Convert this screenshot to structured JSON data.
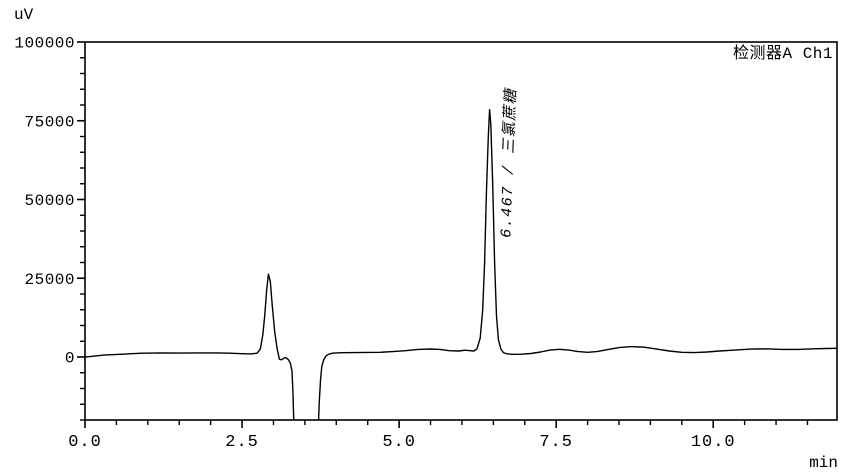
{
  "header": {
    "detector_label": "检测器A Ch1"
  },
  "chart_data": {
    "type": "line",
    "title": "",
    "xlabel": "min",
    "ylabel": "uV",
    "x_range": [
      0,
      11.97
    ],
    "y_range": [
      -20000,
      100000
    ],
    "x_major_ticks": [
      {
        "v": 0.0,
        "label": "0.0"
      },
      {
        "v": 2.5,
        "label": "2.5"
      },
      {
        "v": 5.0,
        "label": "5.0"
      },
      {
        "v": 7.5,
        "label": "7.5"
      },
      {
        "v": 10.0,
        "label": "10.0"
      }
    ],
    "x_minor_step": 0.5,
    "y_major_ticks": [
      {
        "v": 0,
        "label": "0"
      },
      {
        "v": 25000,
        "label": "25000"
      },
      {
        "v": 50000,
        "label": "50000"
      },
      {
        "v": 75000,
        "label": "75000"
      },
      {
        "v": 100000,
        "label": "100000"
      }
    ],
    "y_minor_step": 5000,
    "line_color": "#000000",
    "frame_color": "#000000",
    "background": "#ffffff",
    "grid": false,
    "legend": false,
    "peaks": [
      {
        "retention_time": 6.467,
        "name": "三氯蔗糖",
        "label": "6.467 / 三氯蔗糖",
        "height_uv": 78500
      },
      {
        "retention_time": 2.92,
        "name": "",
        "label": "",
        "height_uv": 26300
      }
    ],
    "trace": [
      [
        0.0,
        0
      ],
      [
        0.1,
        200
      ],
      [
        0.3,
        600
      ],
      [
        0.6,
        900
      ],
      [
        0.9,
        1200
      ],
      [
        1.2,
        1300
      ],
      [
        1.5,
        1250
      ],
      [
        1.8,
        1300
      ],
      [
        2.1,
        1300
      ],
      [
        2.3,
        1200
      ],
      [
        2.5,
        1050
      ],
      [
        2.65,
        1000
      ],
      [
        2.74,
        1200
      ],
      [
        2.79,
        2500
      ],
      [
        2.83,
        7000
      ],
      [
        2.86,
        13000
      ],
      [
        2.89,
        21000
      ],
      [
        2.92,
        26300
      ],
      [
        2.95,
        24000
      ],
      [
        2.98,
        16500
      ],
      [
        3.02,
        8000
      ],
      [
        3.06,
        2500
      ],
      [
        3.095,
        -700
      ],
      [
        3.13,
        -900
      ],
      [
        3.17,
        -300
      ],
      [
        3.2,
        -200
      ],
      [
        3.24,
        -900
      ],
      [
        3.27,
        -2000
      ],
      [
        3.295,
        -4500
      ],
      [
        3.31,
        -11000
      ],
      [
        3.325,
        -21500
      ],
      [
        3.5,
        -22000
      ],
      [
        3.715,
        -21500
      ],
      [
        3.73,
        -14000
      ],
      [
        3.75,
        -7000
      ],
      [
        3.77,
        -3000
      ],
      [
        3.8,
        -900
      ],
      [
        3.84,
        400
      ],
      [
        3.89,
        1000
      ],
      [
        3.95,
        1250
      ],
      [
        4.1,
        1350
      ],
      [
        4.3,
        1400
      ],
      [
        4.5,
        1450
      ],
      [
        4.7,
        1500
      ],
      [
        4.9,
        1700
      ],
      [
        5.1,
        2000
      ],
      [
        5.3,
        2400
      ],
      [
        5.5,
        2550
      ],
      [
        5.65,
        2400
      ],
      [
        5.8,
        2000
      ],
      [
        5.95,
        1900
      ],
      [
        6.05,
        2150
      ],
      [
        6.13,
        2000
      ],
      [
        6.19,
        1900
      ],
      [
        6.24,
        2600
      ],
      [
        6.29,
        6000
      ],
      [
        6.33,
        15000
      ],
      [
        6.36,
        30000
      ],
      [
        6.39,
        52000
      ],
      [
        6.42,
        70000
      ],
      [
        6.44,
        78500
      ],
      [
        6.46,
        74000
      ],
      [
        6.49,
        55000
      ],
      [
        6.52,
        30000
      ],
      [
        6.55,
        13000
      ],
      [
        6.58,
        5500
      ],
      [
        6.62,
        2500
      ],
      [
        6.66,
        1400
      ],
      [
        6.72,
        1000
      ],
      [
        6.8,
        850
      ],
      [
        6.95,
        900
      ],
      [
        7.1,
        1100
      ],
      [
        7.25,
        1600
      ],
      [
        7.4,
        2200
      ],
      [
        7.55,
        2450
      ],
      [
        7.7,
        2200
      ],
      [
        7.85,
        1700
      ],
      [
        8.0,
        1500
      ],
      [
        8.15,
        1700
      ],
      [
        8.3,
        2300
      ],
      [
        8.5,
        3000
      ],
      [
        8.7,
        3300
      ],
      [
        8.9,
        3100
      ],
      [
        9.1,
        2500
      ],
      [
        9.3,
        1900
      ],
      [
        9.5,
        1500
      ],
      [
        9.7,
        1400
      ],
      [
        9.9,
        1600
      ],
      [
        10.1,
        1900
      ],
      [
        10.35,
        2200
      ],
      [
        10.6,
        2500
      ],
      [
        10.85,
        2600
      ],
      [
        11.1,
        2400
      ],
      [
        11.35,
        2400
      ],
      [
        11.6,
        2600
      ],
      [
        11.8,
        2700
      ],
      [
        11.97,
        2750
      ]
    ]
  }
}
